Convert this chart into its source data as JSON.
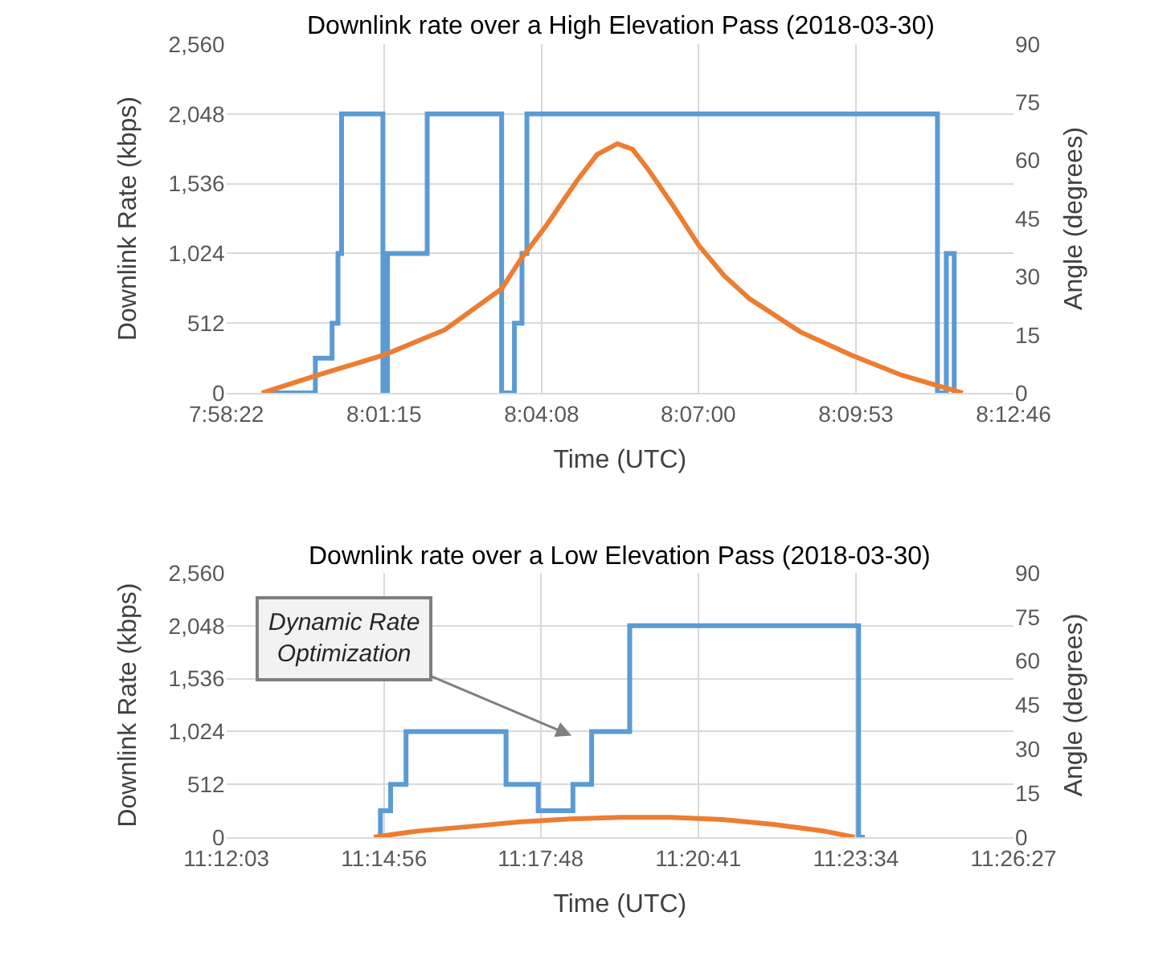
{
  "chart_data": [
    {
      "type": "step",
      "title": "Downlink rate over a High Elevation Pass (2018-03-30)",
      "xlabel": "Time (UTC)",
      "ylabel": "Downlink Rate (kbps)",
      "y2label": "Angle (degrees)",
      "grid": true,
      "marker": "none",
      "xlim": [
        7.972778,
        8.212778
      ],
      "xticks": [
        {
          "value": 7.972778,
          "label": "7:58:22"
        },
        {
          "value": 8.020833,
          "label": "8:01:15"
        },
        {
          "value": 8.068889,
          "label": "8:04:08"
        },
        {
          "value": 8.116667,
          "label": "8:07:00"
        },
        {
          "value": 8.164722,
          "label": "8:09:53"
        },
        {
          "value": 8.212778,
          "label": "8:12:46"
        }
      ],
      "ylim": [
        0,
        2560
      ],
      "yticks": [
        0,
        512,
        {
          "value": 1024,
          "label": "1,024"
        },
        {
          "value": 1536,
          "label": "1,536"
        },
        {
          "value": 2048,
          "label": "2,048"
        },
        {
          "value": 2560,
          "label": "2,560"
        }
      ],
      "y2lim": [
        0,
        90
      ],
      "y2ticks": [
        0,
        15,
        30,
        45,
        60,
        75,
        90
      ],
      "series": [
        {
          "color": "#5b9bd5",
          "x": [
            7.9836,
            7.9999,
            8.005,
            8.0068,
            8.0079,
            8.0205,
            8.0219,
            8.034,
            8.0567,
            8.0606,
            8.0629,
            8.0644,
            8.1896,
            8.1923,
            8.1947,
            8.1973
          ],
          "values": [
            0,
            256,
            512,
            1024,
            2048,
            0,
            1024,
            2048,
            0,
            512,
            1024,
            2048,
            0,
            1024,
            0,
            0
          ]
        },
        {
          "type": "line",
          "axis": "y2",
          "color": "#ed7d31",
          "x": [
            7.9836,
            8.0006,
            8.0208,
            8.0394,
            8.0567,
            8.0626,
            8.0703,
            8.0796,
            8.0858,
            8.092,
            8.0966,
            8.1013,
            8.109,
            8.1168,
            8.1245,
            8.1323,
            8.1477,
            8.1632,
            8.1787,
            8.1973
          ],
          "values": [
            0,
            4.6,
            9.8,
            16.3,
            26.9,
            34.6,
            43.2,
            54.7,
            61.5,
            64.3,
            62.9,
            57.8,
            48.3,
            38.1,
            30.3,
            24.3,
            15.8,
            9.8,
            4.6,
            0
          ]
        }
      ]
    },
    {
      "type": "step",
      "title": "Downlink rate over a Low Elevation Pass (2018-03-30)",
      "xlabel": "Time (UTC)",
      "ylabel": "Downlink Rate (kbps)",
      "y2label": "Angle (degrees)",
      "grid": true,
      "marker": "none",
      "xlim": [
        11.200833,
        11.440833
      ],
      "xticks": [
        {
          "value": 11.200833,
          "label": "11:12:03"
        },
        {
          "value": 11.248889,
          "label": "11:14:56"
        },
        {
          "value": 11.296667,
          "label": "11:17:48"
        },
        {
          "value": 11.344722,
          "label": "11:20:41"
        },
        {
          "value": 11.392778,
          "label": "11:23:34"
        },
        {
          "value": 11.440833,
          "label": "11:26:27"
        }
      ],
      "ylim": [
        0,
        2560
      ],
      "yticks": [
        0,
        512,
        {
          "value": 1024,
          "label": "1,024"
        },
        {
          "value": 1536,
          "label": "1,536"
        },
        {
          "value": 2048,
          "label": "2,048"
        },
        {
          "value": 2560,
          "label": "2,560"
        }
      ],
      "y2lim": [
        0,
        90
      ],
      "y2ticks": [
        0,
        15,
        30,
        45,
        60,
        75,
        90
      ],
      "annotations": [
        "Dynamic Rate\nOptimization"
      ],
      "series": [
        {
          "color": "#5b9bd5",
          "x": [
            11.2469,
            11.2478,
            11.2509,
            11.2556,
            11.2861,
            11.2959,
            11.3065,
            11.3122,
            11.3238,
            11.3936,
            11.3955
          ],
          "values": [
            0,
            256,
            512,
            1024,
            512,
            256,
            512,
            1024,
            2048,
            0,
            0
          ]
        },
        {
          "type": "line",
          "axis": "y2",
          "color": "#ed7d31",
          "x": [
            11.2458,
            11.259,
            11.2745,
            11.29,
            11.3055,
            11.321,
            11.3365,
            11.3521,
            11.3676,
            11.3831,
            11.3924
          ],
          "values": [
            0,
            2.1,
            3.6,
            5.2,
            6.2,
            6.8,
            6.8,
            6.0,
            4.4,
            2.1,
            0
          ]
        }
      ]
    }
  ]
}
